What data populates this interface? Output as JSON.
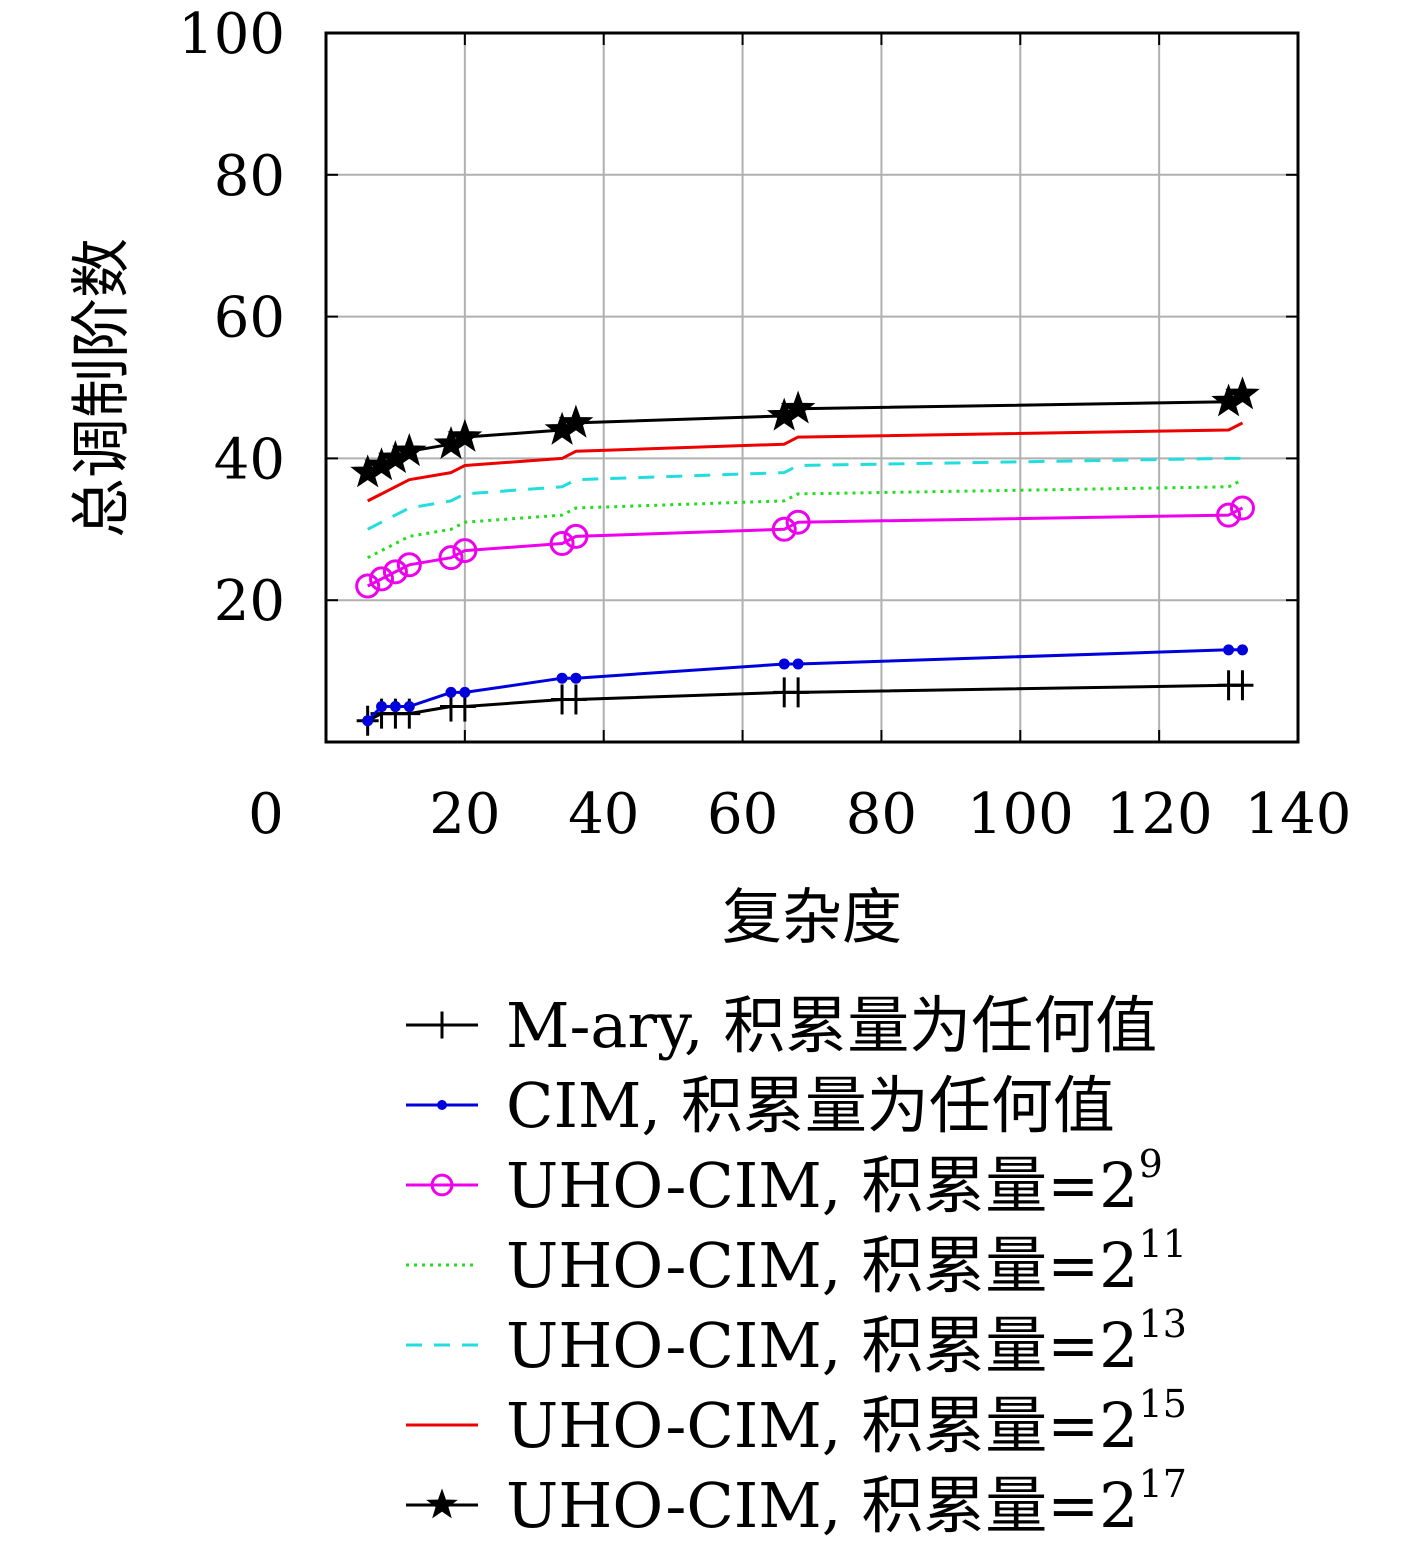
{
  "chart_data": {
    "type": "line",
    "xlabel": "复杂度",
    "ylabel": "总调制阶数",
    "xlim": [
      0,
      140
    ],
    "ylim": [
      0,
      100
    ],
    "x_ticks": [
      0,
      20,
      40,
      60,
      80,
      100,
      120,
      140
    ],
    "y_ticks": [
      20,
      40,
      60,
      80,
      100
    ],
    "grid": true,
    "legend_position": "below",
    "series": [
      {
        "name": "M-ary, 积累量为任何值",
        "label": "M-ary, 积累量为任何值",
        "sup": "",
        "color": "#000000",
        "dash": "",
        "marker": "plus",
        "x": [
          6,
          8,
          10,
          12,
          18,
          20,
          34,
          36,
          66,
          68,
          130,
          132
        ],
        "y": [
          3,
          4,
          4,
          4,
          5,
          5,
          6,
          6,
          7,
          7,
          8,
          8
        ]
      },
      {
        "name": "CIM, 积累量为任何值",
        "label": "CIM, 积累量为任何值",
        "sup": "",
        "color": "#0000dd",
        "dash": "",
        "marker": "dot",
        "x": [
          6,
          8,
          10,
          12,
          18,
          20,
          34,
          36,
          66,
          68,
          130,
          132
        ],
        "y": [
          3,
          5,
          5,
          5,
          7,
          7,
          9,
          9,
          11,
          11,
          13,
          13
        ]
      },
      {
        "name": "UHO-CIM, 积累量=2^9",
        "label": "UHO-CIM, 积累量=2",
        "sup": "9",
        "color": "#ee00ee",
        "dash": "",
        "marker": "circle",
        "x": [
          6,
          8,
          10,
          12,
          18,
          20,
          34,
          36,
          66,
          68,
          130,
          132
        ],
        "y": [
          22,
          23,
          24,
          25,
          26,
          27,
          28,
          29,
          30,
          31,
          32,
          33
        ]
      },
      {
        "name": "UHO-CIM, 积累量=2^11",
        "label": "UHO-CIM, 积累量=2",
        "sup": "11",
        "color": "#22dd22",
        "dash": "3,5",
        "marker": "none",
        "x": [
          6,
          8,
          10,
          12,
          18,
          20,
          34,
          36,
          66,
          68,
          130,
          132
        ],
        "y": [
          26,
          27,
          28,
          29,
          30,
          31,
          32,
          33,
          34,
          35,
          36,
          37
        ]
      },
      {
        "name": "UHO-CIM, 积累量=2^13",
        "label": "UHO-CIM, 积累量=2",
        "sup": "13",
        "color": "#22dddd",
        "dash": "16,12",
        "marker": "none",
        "x": [
          6,
          8,
          10,
          12,
          18,
          20,
          34,
          36,
          66,
          68,
          130,
          132
        ],
        "y": [
          30,
          31,
          32,
          33,
          34,
          35,
          36,
          37,
          38,
          39,
          40,
          40
        ]
      },
      {
        "name": "UHO-CIM, 积累量=2^15",
        "label": "UHO-CIM, 积累量=2",
        "sup": "15",
        "color": "#ee0000",
        "dash": "",
        "marker": "none",
        "x": [
          6,
          8,
          10,
          12,
          18,
          20,
          34,
          36,
          66,
          68,
          130,
          132
        ],
        "y": [
          34,
          35,
          36,
          37,
          38,
          39,
          40,
          41,
          42,
          43,
          44,
          45
        ]
      },
      {
        "name": "UHO-CIM, 积累量=2^17",
        "label": "UHO-CIM, 积累量=2",
        "sup": "17",
        "color": "#000000",
        "dash": "",
        "marker": "star",
        "x": [
          6,
          8,
          10,
          12,
          18,
          20,
          34,
          36,
          66,
          68,
          130,
          132
        ],
        "y": [
          38,
          39,
          40,
          41,
          42,
          43,
          44,
          45,
          46,
          47,
          48,
          49
        ]
      }
    ]
  }
}
